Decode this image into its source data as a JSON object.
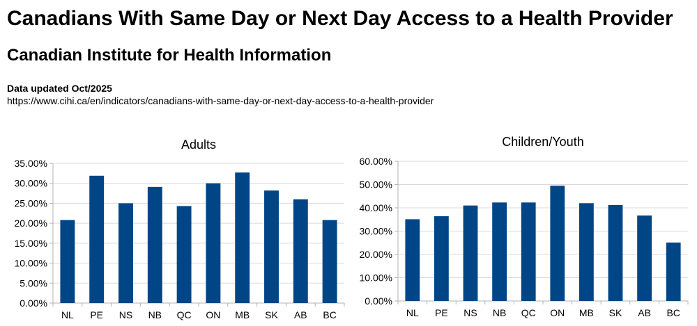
{
  "header": {
    "title": "Canadians With Same Day or Next Day Access to a Health Provider",
    "subtitle": "Canadian Institute for Health Information",
    "updated": "Data updated Oct/2025",
    "url": "https://www.cihi.ca/en/indicators/canadians-with-same-day-or-next-day-access-to-a-health-provider"
  },
  "colors": {
    "bar": "#004586",
    "grid": "#d9d9d9"
  },
  "chart_data": [
    {
      "type": "bar",
      "title": "Adults",
      "categories": [
        "NL",
        "PE",
        "NS",
        "NB",
        "QC",
        "ON",
        "MB",
        "SK",
        "AB",
        "BC"
      ],
      "values": [
        20.8,
        31.9,
        25.0,
        29.1,
        24.3,
        30.0,
        32.7,
        28.2,
        26.0,
        20.8
      ],
      "y_ticks": [
        "0.00%",
        "5.00%",
        "10.00%",
        "15.00%",
        "20.00%",
        "25.00%",
        "30.00%",
        "35.00%"
      ],
      "ylim": [
        0,
        35
      ],
      "grid": true,
      "legend": "none"
    },
    {
      "type": "bar",
      "title": "Children/Youth",
      "categories": [
        "NL",
        "PE",
        "NS",
        "NB",
        "QC",
        "ON",
        "MB",
        "SK",
        "AB",
        "BC"
      ],
      "values": [
        35.1,
        36.4,
        41.0,
        42.3,
        42.3,
        49.5,
        42.0,
        41.2,
        36.7,
        25.1
      ],
      "y_ticks": [
        "0.00%",
        "10.00%",
        "20.00%",
        "30.00%",
        "40.00%",
        "50.00%",
        "60.00%"
      ],
      "ylim": [
        0,
        60
      ],
      "grid": true,
      "legend": "none"
    }
  ]
}
